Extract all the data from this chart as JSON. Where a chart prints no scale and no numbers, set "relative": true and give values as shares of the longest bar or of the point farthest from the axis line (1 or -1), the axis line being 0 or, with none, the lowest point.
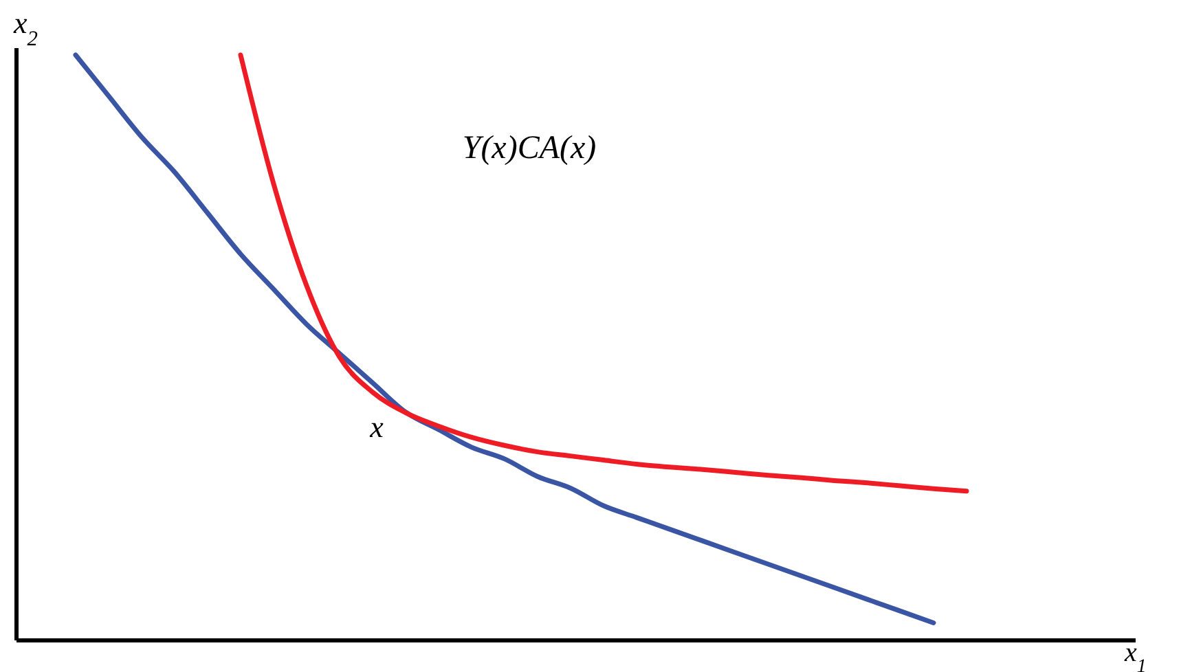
{
  "chart_data": {
    "type": "line",
    "relative": true,
    "ylabel": "x$_{2}$",
    "annotations": [
      "Y(x)CA(x)",
      "x",
      "x$_{1}$"
    ],
    "categories": [
      null,
      null,
      null,
      null,
      null,
      null,
      null,
      null,
      null,
      null,
      null,
      null,
      null,
      null,
      null,
      null,
      null,
      null,
      null,
      null,
      null,
      null,
      null,
      null,
      null,
      null,
      null,
      null
    ],
    "series": [
      {
        "color": "#3a55a4",
        "values": [
          1.0,
          0.93,
          0.86,
          0.8,
          0.73,
          0.66,
          0.6,
          0.54,
          0.49,
          0.44,
          0.39,
          0.36,
          0.33,
          0.31,
          0.28,
          0.26,
          0.23,
          0.21,
          0.19,
          0.17,
          0.15,
          0.13,
          0.11,
          0.09,
          0.07,
          0.05,
          0.03,
          null
        ]
      },
      {
        "color": "#ee1c25",
        "values": [
          null,
          null,
          null,
          null,
          null,
          1.0,
          0.78,
          0.606,
          0.484,
          0.424,
          0.389,
          0.366,
          0.347,
          0.333,
          0.322,
          0.315,
          0.308,
          0.301,
          0.296,
          0.292,
          0.287,
          0.282,
          0.278,
          0.273,
          0.269,
          0.264,
          0.259,
          0.255
        ]
      }
    ]
  }
}
